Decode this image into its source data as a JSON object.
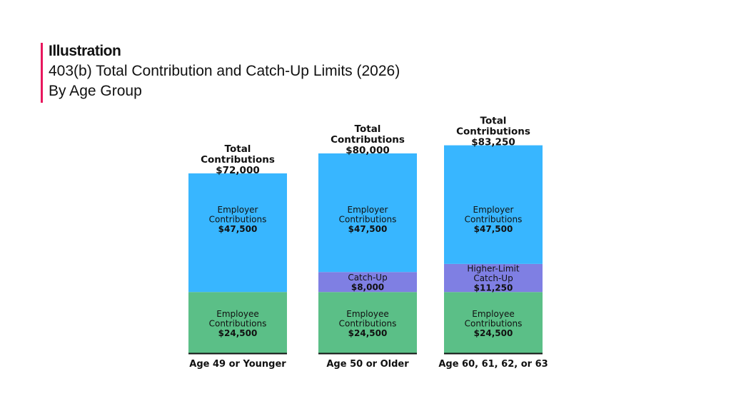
{
  "header": {
    "kicker": "Illustration",
    "title": "403(b) Total Contribution and Catch-Up Limits (2026)",
    "subtitle": "By Age Group"
  },
  "colors": {
    "accent": "#e8175d",
    "employer": "#38b6ff",
    "catchup": "#7f7fe3",
    "employee": "#5bbf87",
    "text": "#111111"
  },
  "chart_data": {
    "type": "bar",
    "stacked": true,
    "categories": [
      "Age 49 or Younger",
      "Age 50 or Older",
      "Age 60, 61, 62, or 63"
    ],
    "series": [
      {
        "name": "Employee Contributions",
        "values": [
          24500,
          24500,
          24500
        ],
        "color": "#5bbf87"
      },
      {
        "name": "Catch-Up",
        "values": [
          0,
          8000,
          0
        ],
        "color": "#7f7fe3"
      },
      {
        "name": "Higher-Limit Catch-Up",
        "values": [
          0,
          0,
          11250
        ],
        "color": "#7f7fe3"
      },
      {
        "name": "Employer Contributions",
        "values": [
          47500,
          47500,
          47500
        ],
        "color": "#38b6ff"
      }
    ],
    "segment_labels": [
      [
        [
          "Employee",
          "Contributions",
          "$24,500"
        ],
        null,
        null,
        [
          "Employer",
          "Contributions",
          "$47,500"
        ]
      ],
      [
        [
          "Employee",
          "Contributions",
          "$24,500"
        ],
        [
          "Catch-Up",
          "$8,000"
        ],
        null,
        [
          "Employer",
          "Contributions",
          "$47,500"
        ]
      ],
      [
        [
          "Employee",
          "Contributions",
          "$24,500"
        ],
        null,
        [
          "Higher-Limit",
          "Catch-Up",
          "$11,250"
        ],
        [
          "Employer",
          "Contributions",
          "$47,500"
        ]
      ]
    ],
    "total_label": "Total Contributions",
    "totals": [
      "$72,000",
      "$80,000",
      "$83,250"
    ],
    "total_values": [
      72000,
      80000,
      83250
    ],
    "grid": false,
    "legend": "none",
    "xlabel": "",
    "ylabel": ""
  }
}
